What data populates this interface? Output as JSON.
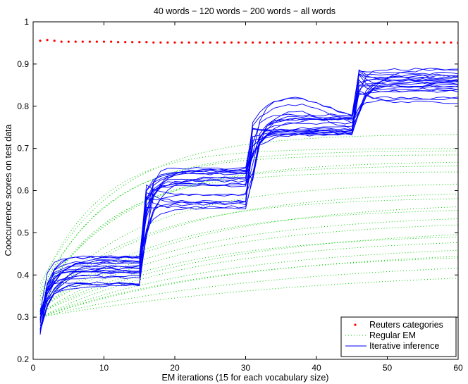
{
  "chart_data": {
    "type": "line",
    "title": "40 words − 120 words − 200 words − all words",
    "xlabel": "EM iterations (15 for each vocabulary size)",
    "ylabel": "Cooccurrence scores on test data",
    "xlim": [
      0,
      60
    ],
    "ylim": [
      0.2,
      1.0
    ],
    "xticks": [
      0,
      10,
      20,
      30,
      40,
      50,
      60
    ],
    "xtick_labels": [
      "0",
      "10",
      "20",
      "30",
      "40",
      "50",
      "60"
    ],
    "yticks": [
      0.2,
      0.3,
      0.4,
      0.5,
      0.6,
      0.7,
      0.8,
      0.9,
      1.0
    ],
    "ytick_labels": [
      "0.2",
      "0.3",
      "0.4",
      "0.5",
      "0.6",
      "0.7",
      "0.8",
      "0.9",
      "1"
    ],
    "grid": false,
    "legend_position": "bottom-right",
    "legend": [
      {
        "label": "Reuters categories",
        "style": "dots",
        "color": "#ff0000"
      },
      {
        "label": "Regular EM",
        "style": "dotted",
        "color": "#00cc00"
      },
      {
        "label": "Iterative inference",
        "style": "solid",
        "color": "#0000ff"
      }
    ],
    "series": [
      {
        "name": "Reuters categories",
        "color": "#ff0000",
        "style": "dots",
        "x": [
          1,
          2,
          3,
          4,
          5,
          6,
          7,
          8,
          9,
          10,
          11,
          12,
          13,
          14,
          15,
          16,
          17,
          18,
          19,
          20,
          21,
          22,
          23,
          24,
          25,
          26,
          27,
          28,
          29,
          30,
          31,
          32,
          33,
          34,
          35,
          36,
          37,
          38,
          39,
          40,
          41,
          42,
          43,
          44,
          45,
          46,
          47,
          48,
          49,
          50,
          51,
          52,
          53,
          54,
          55,
          56,
          57,
          58,
          59,
          60
        ],
        "y": [
          0.955,
          0.957,
          0.955,
          0.953,
          0.953,
          0.953,
          0.953,
          0.953,
          0.953,
          0.953,
          0.953,
          0.952,
          0.952,
          0.952,
          0.952,
          0.952,
          0.951,
          0.951,
          0.951,
          0.951,
          0.951,
          0.951,
          0.951,
          0.951,
          0.951,
          0.951,
          0.951,
          0.951,
          0.951,
          0.951,
          0.951,
          0.951,
          0.951,
          0.951,
          0.951,
          0.951,
          0.951,
          0.951,
          0.951,
          0.951,
          0.951,
          0.951,
          0.951,
          0.951,
          0.951,
          0.951,
          0.951,
          0.951,
          0.951,
          0.951,
          0.951,
          0.951,
          0.951,
          0.951,
          0.951,
          0.951,
          0.951,
          0.951,
          0.951,
          0.95
        ]
      }
    ],
    "regular_em": {
      "name": "Regular EM",
      "color": "#00cc00",
      "style": "dotted",
      "curves": [
        {
          "start": 0.38,
          "end": 0.735,
          "rate": 0.09
        },
        {
          "start": 0.37,
          "end": 0.7,
          "rate": 0.12
        },
        {
          "start": 0.36,
          "end": 0.695,
          "rate": 0.1
        },
        {
          "start": 0.35,
          "end": 0.685,
          "rate": 0.11
        },
        {
          "start": 0.35,
          "end": 0.67,
          "rate": 0.08
        },
        {
          "start": 0.34,
          "end": 0.66,
          "rate": 0.09
        },
        {
          "start": 0.34,
          "end": 0.645,
          "rate": 0.1
        },
        {
          "start": 0.33,
          "end": 0.62,
          "rate": 0.07
        },
        {
          "start": 0.33,
          "end": 0.6,
          "rate": 0.06
        },
        {
          "start": 0.33,
          "end": 0.585,
          "rate": 0.07
        },
        {
          "start": 0.32,
          "end": 0.575,
          "rate": 0.05
        },
        {
          "start": 0.32,
          "end": 0.56,
          "rate": 0.06
        },
        {
          "start": 0.32,
          "end": 0.545,
          "rate": 0.05
        },
        {
          "start": 0.31,
          "end": 0.53,
          "rate": 0.05
        },
        {
          "start": 0.31,
          "end": 0.515,
          "rate": 0.04
        },
        {
          "start": 0.31,
          "end": 0.5,
          "rate": 0.05
        },
        {
          "start": 0.3,
          "end": 0.49,
          "rate": 0.045
        },
        {
          "start": 0.3,
          "end": 0.475,
          "rate": 0.04
        },
        {
          "start": 0.3,
          "end": 0.465,
          "rate": 0.035
        },
        {
          "start": 0.3,
          "end": 0.455,
          "rate": 0.04
        },
        {
          "start": 0.3,
          "end": 0.44,
          "rate": 0.03
        },
        {
          "start": 0.3,
          "end": 0.42,
          "rate": 0.025
        }
      ]
    },
    "iterative_inference": {
      "name": "Iterative inference",
      "color": "#0000ff",
      "style": "solid",
      "stages": [
        {
          "x_start": 1,
          "x_end": 15,
          "start_min": 0.26,
          "start_max": 0.33,
          "plateau_min": 0.33,
          "plateau_max": 0.445,
          "end_min": 0.36,
          "end_max": 0.445
        },
        {
          "x_start": 16,
          "x_end": 30,
          "start_min": 0.49,
          "start_max": 0.62,
          "plateau_min": 0.495,
          "plateau_max": 0.66,
          "end_min": 0.54,
          "end_max": 0.66
        },
        {
          "x_start": 31,
          "x_end": 45,
          "start_min": 0.62,
          "start_max": 0.765,
          "plateau_min": 0.67,
          "plateau_max": 0.82,
          "end_min": 0.715,
          "end_max": 0.78
        },
        {
          "x_start": 46,
          "x_end": 60,
          "start_min": 0.78,
          "start_max": 0.89,
          "plateau_min": 0.785,
          "plateau_max": 0.895,
          "end_min": 0.785,
          "end_max": 0.895
        }
      ],
      "curve_count": 22
    }
  }
}
